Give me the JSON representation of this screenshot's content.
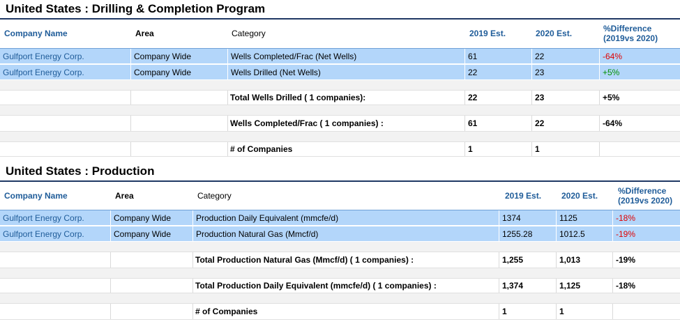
{
  "sections": [
    {
      "title": "United States : Drilling & Completion Program",
      "headers": {
        "company": "Company Name",
        "area": "Area",
        "category": "Category",
        "y2019": "2019 Est.",
        "y2020": "2020 Est.",
        "diff_line1": "%Difference",
        "diff_line2": "(2019vs 2020)"
      },
      "rows": [
        {
          "company": "Gulfport Energy Corp.",
          "area": "Company Wide",
          "category": "Wells Completed/Frac (Net Wells)",
          "y2019": "61",
          "y2020": "22",
          "diff": "-64%"
        },
        {
          "company": "Gulfport Energy Corp.",
          "area": "Company Wide",
          "category": "Wells Drilled (Net Wells)",
          "y2019": "22",
          "y2020": "23",
          "diff": "+5%"
        }
      ],
      "totals": [
        {
          "category": "Total Wells Drilled ( 1 companies):",
          "y2019": "22",
          "y2020": "23",
          "diff": "+5%"
        },
        {
          "category": "Wells Completed/Frac ( 1 companies) :",
          "y2019": "61",
          "y2020": "22",
          "diff": "-64%"
        },
        {
          "category": "# of Companies",
          "y2019": "1",
          "y2020": "1",
          "diff": ""
        }
      ]
    },
    {
      "title": "United States : Production",
      "headers": {
        "company": "Company Name",
        "area": "Area",
        "category": "Category",
        "y2019": "2019 Est.",
        "y2020": "2020 Est.",
        "diff_line1": "%Difference",
        "diff_line2": "(2019vs 2020)"
      },
      "rows": [
        {
          "company": "Gulfport Energy Corp.",
          "area": "Company Wide",
          "category": "Production Daily Equivalent (mmcfe/d)",
          "y2019": "1374",
          "y2020": "1125",
          "diff": "-18%"
        },
        {
          "company": "Gulfport Energy Corp.",
          "area": "Company Wide",
          "category": "Production Natural Gas (Mmcf/d)",
          "y2019": "1255.28",
          "y2020": "1012.5",
          "diff": "-19%"
        }
      ],
      "totals": [
        {
          "category": "Total Production Natural Gas (Mmcf/d) ( 1 companies) :",
          "y2019": "1,255",
          "y2020": "1,013",
          "diff": "-19%"
        },
        {
          "category": "Total Production Daily Equivalent (mmcfe/d) ( 1 companies) :",
          "y2019": "1,374",
          "y2020": "1,125",
          "diff": "-18%"
        },
        {
          "category": "# of Companies",
          "y2019": "1",
          "y2020": "1",
          "diff": ""
        }
      ]
    }
  ],
  "colors": {
    "header_blue": "#1f5c99",
    "row_highlight": "#b3d6fa",
    "negative": "#e00000",
    "positive": "#009000"
  }
}
